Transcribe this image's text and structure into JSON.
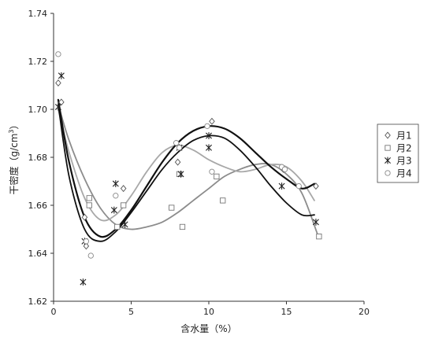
{
  "chart_data": {
    "type": "scatter",
    "title": "",
    "xlabel": "含水量（%）",
    "ylabel_parts": [
      "干密度（g/cm",
      "3",
      "）"
    ],
    "xlim": [
      0,
      20
    ],
    "ylim": [
      1.62,
      1.74
    ],
    "x_ticks": [
      0,
      5,
      10,
      15,
      20
    ],
    "x_tick_labels": [
      "0",
      "5",
      "10",
      "15",
      "20"
    ],
    "y_ticks": [
      1.62,
      1.64,
      1.66,
      1.68,
      1.7,
      1.72,
      1.74
    ],
    "y_tick_labels": [
      "1.62",
      "1.64",
      "1.66",
      "1.68",
      "1.70",
      "1.72",
      "1.74"
    ],
    "grid": false,
    "legend_position": "right",
    "series": [
      {
        "name": "月1",
        "marker": "diamond",
        "curve_color": "#111111",
        "curve_width": 2.2,
        "points": [
          {
            "x": 0.3,
            "y": 1.711
          },
          {
            "x": 0.5,
            "y": 1.703
          },
          {
            "x": 2.0,
            "y": 1.655
          },
          {
            "x": 2.1,
            "y": 1.643
          },
          {
            "x": 4.5,
            "y": 1.667
          },
          {
            "x": 8.0,
            "y": 1.678
          },
          {
            "x": 10.2,
            "y": 1.695
          },
          {
            "x": 14.8,
            "y": 1.675
          },
          {
            "x": 16.9,
            "y": 1.668
          }
        ],
        "curve": [
          {
            "x": 0.3,
            "y": 1.704
          },
          {
            "x": 1.0,
            "y": 1.678
          },
          {
            "x": 2.0,
            "y": 1.655
          },
          {
            "x": 3.0,
            "y": 1.647
          },
          {
            "x": 4.0,
            "y": 1.65
          },
          {
            "x": 5.0,
            "y": 1.658
          },
          {
            "x": 6.0,
            "y": 1.668
          },
          {
            "x": 7.0,
            "y": 1.678
          },
          {
            "x": 8.0,
            "y": 1.686
          },
          {
            "x": 9.0,
            "y": 1.691
          },
          {
            "x": 10.0,
            "y": 1.693
          },
          {
            "x": 11.0,
            "y": 1.692
          },
          {
            "x": 12.0,
            "y": 1.688
          },
          {
            "x": 13.0,
            "y": 1.682
          },
          {
            "x": 14.0,
            "y": 1.676
          },
          {
            "x": 15.0,
            "y": 1.671
          },
          {
            "x": 16.0,
            "y": 1.667
          },
          {
            "x": 16.8,
            "y": 1.669
          }
        ]
      },
      {
        "name": "月2",
        "marker": "square",
        "curve_color": "#8c8c8c",
        "curve_width": 1.8,
        "points": [
          {
            "x": 2.3,
            "y": 1.663
          },
          {
            "x": 2.3,
            "y": 1.66
          },
          {
            "x": 4.1,
            "y": 1.651
          },
          {
            "x": 4.5,
            "y": 1.66
          },
          {
            "x": 7.6,
            "y": 1.659
          },
          {
            "x": 8.1,
            "y": 1.673
          },
          {
            "x": 8.3,
            "y": 1.651
          },
          {
            "x": 10.5,
            "y": 1.672
          },
          {
            "x": 10.9,
            "y": 1.662
          },
          {
            "x": 17.1,
            "y": 1.647
          }
        ],
        "curve": [
          {
            "x": 0.3,
            "y": 1.702
          },
          {
            "x": 1.0,
            "y": 1.687
          },
          {
            "x": 2.0,
            "y": 1.671
          },
          {
            "x": 3.0,
            "y": 1.659
          },
          {
            "x": 4.0,
            "y": 1.652
          },
          {
            "x": 5.0,
            "y": 1.65
          },
          {
            "x": 6.0,
            "y": 1.651
          },
          {
            "x": 7.0,
            "y": 1.653
          },
          {
            "x": 8.0,
            "y": 1.657
          },
          {
            "x": 9.0,
            "y": 1.662
          },
          {
            "x": 10.0,
            "y": 1.667
          },
          {
            "x": 11.0,
            "y": 1.672
          },
          {
            "x": 12.0,
            "y": 1.675
          },
          {
            "x": 13.0,
            "y": 1.677
          },
          {
            "x": 14.0,
            "y": 1.677
          },
          {
            "x": 15.0,
            "y": 1.673
          },
          {
            "x": 16.0,
            "y": 1.665
          },
          {
            "x": 17.0,
            "y": 1.648
          }
        ]
      },
      {
        "name": "月3",
        "marker": "asterisk",
        "curve_color": "#111111",
        "curve_width": 1.8,
        "points": [
          {
            "x": 0.5,
            "y": 1.714
          },
          {
            "x": 0.3,
            "y": 1.701
          },
          {
            "x": 1.9,
            "y": 1.628
          },
          {
            "x": 2.0,
            "y": 1.645
          },
          {
            "x": 3.9,
            "y": 1.658
          },
          {
            "x": 4.0,
            "y": 1.669
          },
          {
            "x": 4.6,
            "y": 1.652
          },
          {
            "x": 8.1,
            "y": 1.684
          },
          {
            "x": 8.2,
            "y": 1.673
          },
          {
            "x": 10.0,
            "y": 1.684
          },
          {
            "x": 10.0,
            "y": 1.689
          },
          {
            "x": 14.7,
            "y": 1.668
          },
          {
            "x": 16.9,
            "y": 1.653
          }
        ],
        "curve": [
          {
            "x": 0.3,
            "y": 1.702
          },
          {
            "x": 1.0,
            "y": 1.672
          },
          {
            "x": 2.0,
            "y": 1.65
          },
          {
            "x": 3.0,
            "y": 1.645
          },
          {
            "x": 4.0,
            "y": 1.649
          },
          {
            "x": 5.0,
            "y": 1.657
          },
          {
            "x": 6.0,
            "y": 1.666
          },
          {
            "x": 7.0,
            "y": 1.675
          },
          {
            "x": 8.0,
            "y": 1.682
          },
          {
            "x": 9.0,
            "y": 1.687
          },
          {
            "x": 10.0,
            "y": 1.689
          },
          {
            "x": 11.0,
            "y": 1.688
          },
          {
            "x": 12.0,
            "y": 1.683
          },
          {
            "x": 13.0,
            "y": 1.676
          },
          {
            "x": 14.0,
            "y": 1.668
          },
          {
            "x": 15.0,
            "y": 1.661
          },
          {
            "x": 16.0,
            "y": 1.656
          },
          {
            "x": 16.8,
            "y": 1.656
          }
        ]
      },
      {
        "name": "月4",
        "marker": "circle",
        "curve_color": "#a8a8a8",
        "curve_width": 1.8,
        "points": [
          {
            "x": 0.3,
            "y": 1.723
          },
          {
            "x": 2.1,
            "y": 1.645
          },
          {
            "x": 2.4,
            "y": 1.639
          },
          {
            "x": 4.0,
            "y": 1.664
          },
          {
            "x": 7.9,
            "y": 1.686
          },
          {
            "x": 8.1,
            "y": 1.684
          },
          {
            "x": 9.9,
            "y": 1.693
          },
          {
            "x": 10.2,
            "y": 1.674
          },
          {
            "x": 14.7,
            "y": 1.676
          },
          {
            "x": 14.9,
            "y": 1.675
          },
          {
            "x": 15.8,
            "y": 1.668
          }
        ],
        "curve": [
          {
            "x": 0.3,
            "y": 1.7
          },
          {
            "x": 1.0,
            "y": 1.682
          },
          {
            "x": 2.0,
            "y": 1.663
          },
          {
            "x": 3.0,
            "y": 1.654
          },
          {
            "x": 4.0,
            "y": 1.656
          },
          {
            "x": 5.0,
            "y": 1.664
          },
          {
            "x": 6.0,
            "y": 1.674
          },
          {
            "x": 7.0,
            "y": 1.682
          },
          {
            "x": 8.0,
            "y": 1.685
          },
          {
            "x": 9.0,
            "y": 1.683
          },
          {
            "x": 10.0,
            "y": 1.679
          },
          {
            "x": 11.0,
            "y": 1.676
          },
          {
            "x": 12.0,
            "y": 1.674
          },
          {
            "x": 13.0,
            "y": 1.675
          },
          {
            "x": 14.0,
            "y": 1.677
          },
          {
            "x": 15.0,
            "y": 1.676
          },
          {
            "x": 16.0,
            "y": 1.67
          },
          {
            "x": 16.8,
            "y": 1.662
          }
        ]
      }
    ]
  }
}
